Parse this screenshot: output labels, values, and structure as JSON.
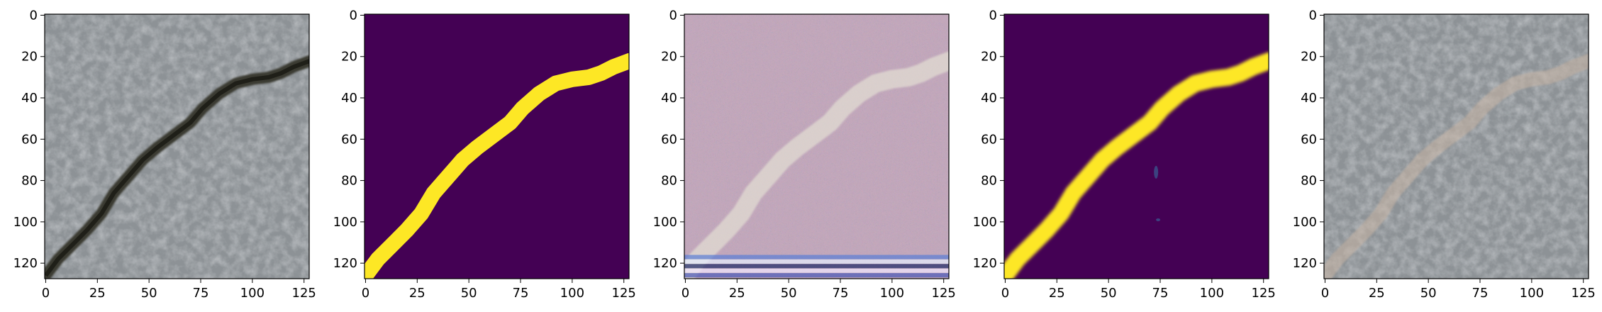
{
  "figure": {
    "panels": [
      {
        "name": "panel-crack-photo",
        "content": "photo",
        "x_ticks": [
          "0",
          "25",
          "50",
          "75",
          "100",
          "125"
        ],
        "y_ticks": [
          "0",
          "20",
          "40",
          "60",
          "80",
          "100",
          "120"
        ]
      },
      {
        "name": "panel-ground-truth-mask",
        "content": "mask",
        "x_ticks": [
          "0",
          "25",
          "50",
          "75",
          "100",
          "125"
        ],
        "y_ticks": [
          "0",
          "20",
          "40",
          "60",
          "80",
          "100",
          "120"
        ]
      },
      {
        "name": "panel-generated-texture",
        "content": "texture",
        "x_ticks": [
          "0",
          "25",
          "50",
          "75",
          "100",
          "125"
        ],
        "y_ticks": [
          "0",
          "20",
          "40",
          "60",
          "80",
          "100",
          "120"
        ]
      },
      {
        "name": "panel-predicted-mask",
        "content": "prediction",
        "x_ticks": [
          "0",
          "25",
          "50",
          "75",
          "100",
          "125"
        ],
        "y_ticks": [
          "0",
          "20",
          "40",
          "60",
          "80",
          "100",
          "120"
        ]
      },
      {
        "name": "panel-overlay",
        "content": "overlay",
        "x_ticks": [
          "0",
          "25",
          "50",
          "75",
          "100",
          "125"
        ],
        "y_ticks": [
          "0",
          "20",
          "40",
          "60",
          "80",
          "100",
          "120"
        ]
      }
    ],
    "image_extent": [
      128,
      128
    ],
    "colors": {
      "mask_background": "#440154",
      "mask_foreground": "#fde725",
      "concrete": "#8d9296",
      "crack": "#3a3a30",
      "axis": "#000000"
    }
  }
}
